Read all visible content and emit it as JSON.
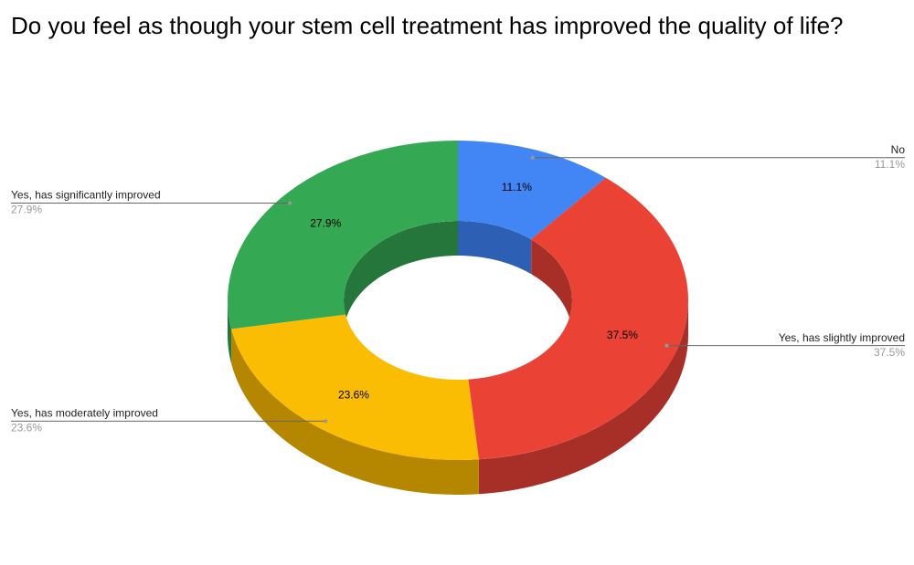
{
  "chart_data": {
    "type": "donut",
    "is3D": true,
    "title": "Do you feel as though your stem cell treatment has improved the quality of life?",
    "categories": [
      "No",
      "Yes, has slightly improved",
      "Yes, has moderately improved",
      "Yes, has significantly improved"
    ],
    "values": [
      11.1,
      37.5,
      23.6,
      27.9
    ],
    "value_labels": [
      "11.1%",
      "37.5%",
      "23.6%",
      "27.9%"
    ],
    "colors": [
      "#4285f4",
      "#ea4335",
      "#fbbc04",
      "#34a853"
    ],
    "side_colors": [
      "#2d5fb4",
      "#a82f28",
      "#b58700",
      "#24763a"
    ]
  }
}
